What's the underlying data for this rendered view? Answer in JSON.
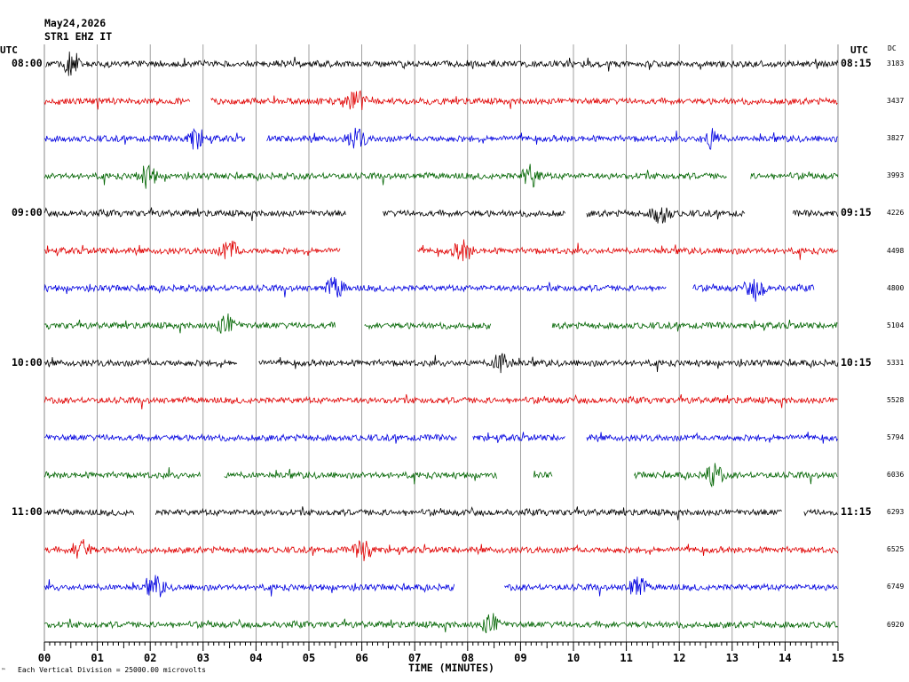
{
  "header": {
    "date": "May24,2026",
    "station": "STR1 EHZ IT",
    "utc_left": "UTC",
    "utc_right": "UTC",
    "dc_label": "DC"
  },
  "footer": {
    "scale_note": "Each Vertical Division = 25000.00 microvolts",
    "corner_mark": "™"
  },
  "chart_data": {
    "type": "line",
    "subtype": "helicorder",
    "xlabel": "TIME (MINUTES)",
    "x_ticks": [
      "00",
      "01",
      "02",
      "03",
      "04",
      "05",
      "06",
      "07",
      "08",
      "09",
      "10",
      "11",
      "12",
      "13",
      "14",
      "15"
    ],
    "xlim": [
      0,
      15
    ],
    "grid": true,
    "trace_colors": [
      "#000000",
      "#e00000",
      "#0000e0",
      "#006400"
    ],
    "left_time_labels": [
      {
        "row": 0,
        "label": "08:00"
      },
      {
        "row": 4,
        "label": "09:00"
      },
      {
        "row": 8,
        "label": "10:00"
      },
      {
        "row": 12,
        "label": "11:00"
      }
    ],
    "right_time_labels": [
      {
        "row": 0,
        "label": "08:15"
      },
      {
        "row": 4,
        "label": "09:15"
      },
      {
        "row": 8,
        "label": "10:15"
      },
      {
        "row": 12,
        "label": "11:15"
      }
    ],
    "dc_values": [
      "3183",
      "3437",
      "3827",
      "3993",
      "4226",
      "4498",
      "4800",
      "5104",
      "5331",
      "5528",
      "5794",
      "6036",
      "6293",
      "6525",
      "6749",
      "6920"
    ],
    "rows": [
      {
        "segments": [
          [
            0.02,
            15.0
          ]
        ],
        "events": [
          0.5
        ]
      },
      {
        "segments": [
          [
            0.0,
            2.75
          ],
          [
            3.15,
            15.0
          ]
        ],
        "events": [
          5.9
        ]
      },
      {
        "segments": [
          [
            0.0,
            3.8
          ],
          [
            4.2,
            15.0
          ]
        ],
        "events": [
          2.85,
          5.9,
          12.6
        ]
      },
      {
        "segments": [
          [
            0.0,
            12.9
          ],
          [
            13.35,
            15.0
          ]
        ],
        "events": [
          1.95,
          9.2
        ]
      },
      {
        "segments": [
          [
            0.0,
            5.7
          ],
          [
            6.4,
            9.85
          ],
          [
            10.25,
            13.25
          ],
          [
            14.15,
            15.0
          ]
        ],
        "events": [
          11.65
        ]
      },
      {
        "segments": [
          [
            0.0,
            5.6
          ],
          [
            7.05,
            15.0
          ]
        ],
        "events": [
          3.5,
          7.9
        ]
      },
      {
        "segments": [
          [
            0.0,
            11.75
          ],
          [
            12.25,
            14.55
          ]
        ],
        "events": [
          5.5,
          13.45
        ]
      },
      {
        "segments": [
          [
            0.0,
            5.5
          ],
          [
            6.05,
            8.45
          ],
          [
            9.6,
            15.0
          ]
        ],
        "events": [
          3.45
        ]
      },
      {
        "segments": [
          [
            0.0,
            3.65
          ],
          [
            4.05,
            15.0
          ]
        ],
        "events": [
          8.65
        ]
      },
      {
        "segments": [
          [
            0.0,
            15.0
          ]
        ],
        "events": []
      },
      {
        "segments": [
          [
            0.0,
            7.8
          ],
          [
            8.1,
            9.85
          ],
          [
            10.25,
            15.0
          ]
        ],
        "events": []
      },
      {
        "segments": [
          [
            0.0,
            2.95
          ],
          [
            3.4,
            8.55
          ],
          [
            9.25,
            9.6
          ],
          [
            11.15,
            15.0
          ]
        ],
        "events": [
          12.65
        ]
      },
      {
        "segments": [
          [
            0.0,
            1.7
          ],
          [
            2.1,
            13.95
          ],
          [
            14.35,
            15.0
          ]
        ],
        "events": []
      },
      {
        "segments": [
          [
            0.0,
            15.0
          ]
        ],
        "events": [
          0.7,
          6.05
        ]
      },
      {
        "segments": [
          [
            0.0,
            7.75
          ],
          [
            8.7,
            15.0
          ]
        ],
        "events": [
          2.1,
          11.2
        ]
      },
      {
        "segments": [
          [
            0.0,
            15.0
          ]
        ],
        "events": [
          8.45
        ]
      }
    ]
  }
}
